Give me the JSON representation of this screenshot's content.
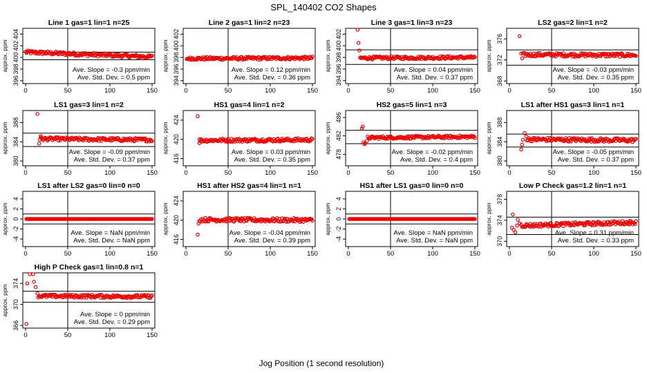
{
  "figure_title": "SPL_140402  CO2 Shapes",
  "x_axis_label": "Jog Position (1 second resolution)",
  "y_axis_label": "approx. ppm",
  "colors": {
    "points": "#ee0000",
    "axes": "#000000",
    "background": "#ffffff"
  },
  "chart_data": [
    {
      "type": "scatter",
      "title": "Line 1 gas=1 lin=1 n=25",
      "xlim": [
        0,
        150
      ],
      "xticks": [
        0,
        50,
        100,
        150
      ],
      "ylim": [
        395.5,
        405
      ],
      "yticks": [
        396,
        398,
        400,
        402,
        404
      ],
      "hlines": [
        400.9,
        399.6
      ],
      "annotations": [
        "Ave. Slope = -0.3 ppm/min",
        "Ave. Std. Dev. = 0.5 ppm"
      ],
      "series": [
        {
          "name": "co2",
          "gen": {
            "x0": 0,
            "x1": 150,
            "a": 400.9,
            "b": 400.1,
            "noise": 0.3,
            "step": 1
          }
        }
      ]
    },
    {
      "type": "scatter",
      "title": "Line 2 gas=1 lin=2 n=23",
      "xlim": [
        0,
        150
      ],
      "xticks": [
        0,
        50,
        100,
        150
      ],
      "ylim": [
        393.5,
        403
      ],
      "yticks": [
        394,
        396,
        398,
        400,
        402
      ],
      "hlines": [],
      "annotations": [
        "Ave. Slope = 0.12 ppm/min",
        "Ave. Std. Dev. = 0.36 ppm"
      ],
      "series": [
        {
          "name": "co2",
          "gen": {
            "x0": 1,
            "x1": 150,
            "a": 397.8,
            "b": 397.9,
            "noise": 0.25,
            "step": 1
          }
        }
      ]
    },
    {
      "type": "scatter",
      "title": "Line 3 gas=1 lin=3 n=23",
      "xlim": [
        0,
        150
      ],
      "xticks": [
        0,
        50,
        100,
        150
      ],
      "ylim": [
        393.5,
        403
      ],
      "yticks": [
        394,
        396,
        398,
        400,
        402
      ],
      "hlines": [
        399.3,
        396.8
      ],
      "annotations": [
        "Ave. Slope = 0.04 ppm/min",
        "Ave. Std. Dev. = 0.37 ppm"
      ],
      "series": [
        {
          "name": "co2",
          "extra": [
            [
              11,
              402.8
            ],
            [
              12,
              400.5
            ],
            [
              13,
              399.2
            ]
          ],
          "gen": {
            "x0": 14,
            "x1": 150,
            "a": 397.9,
            "b": 398.0,
            "noise": 0.25,
            "step": 1
          }
        }
      ]
    },
    {
      "type": "scatter",
      "title": "LS2 gas=2 lin=1 n=2",
      "xlim": [
        0,
        150
      ],
      "xticks": [
        0,
        50,
        100,
        150
      ],
      "ylim": [
        367.5,
        378
      ],
      "yticks": [
        368,
        372,
        376
      ],
      "hlines": [
        373.9,
        371.0
      ],
      "annotations": [
        "Ave. Slope = -0.03 ppm/min",
        "Ave. Std. Dev. = 0.35 ppm"
      ],
      "series": [
        {
          "name": "co2",
          "extra": [
            [
              12,
              376.5
            ],
            [
              14,
              373.2
            ],
            [
              15,
              372.3
            ]
          ],
          "gen": {
            "x0": 16,
            "x1": 150,
            "a": 373.0,
            "b": 372.9,
            "noise": 0.35,
            "step": 1
          }
        }
      ]
    },
    {
      "type": "scatter",
      "title": "LS1 gas=3 lin=1 n=2",
      "xlim": [
        0,
        150
      ],
      "xticks": [
        0,
        50,
        100,
        150
      ],
      "ylim": [
        379,
        390.5
      ],
      "yticks": [
        380,
        384,
        388
      ],
      "hlines": [
        385.8,
        383.0
      ],
      "annotations": [
        "Ave. Slope = -0.09 ppm/min",
        "Ave. Std. Dev. = 0.37 ppm"
      ],
      "series": [
        {
          "name": "co2",
          "extra": [
            [
              14,
              389.8
            ],
            [
              16,
              383.6
            ],
            [
              18,
              385.2
            ]
          ],
          "gen": {
            "x0": 17,
            "x1": 150,
            "a": 384.6,
            "b": 384.4,
            "noise": 0.35,
            "step": 1
          }
        }
      ]
    },
    {
      "type": "scatter",
      "title": "HS1 gas=4 lin=1 n=2",
      "xlim": [
        0,
        150
      ],
      "xticks": [
        0,
        50,
        100,
        150
      ],
      "ylim": [
        414.5,
        426
      ],
      "yticks": [
        416,
        420,
        424
      ],
      "hlines": [],
      "annotations": [
        "Ave. Slope = 0.03 ppm/min",
        "Ave. Std. Dev. = 0.35 ppm"
      ],
      "series": [
        {
          "name": "co2",
          "extra": [
            [
              14,
              424.8
            ],
            [
              16,
              419.2
            ]
          ],
          "gen": {
            "x0": 16,
            "x1": 150,
            "a": 419.8,
            "b": 419.9,
            "noise": 0.35,
            "step": 1
          }
        }
      ]
    },
    {
      "type": "scatter",
      "title": "HS2 gas=5 lin=1 n=3",
      "xlim": [
        0,
        150
      ],
      "xticks": [
        0,
        50,
        100,
        150
      ],
      "ylim": [
        475.5,
        487.5
      ],
      "yticks": [
        478,
        482,
        486
      ],
      "hlines": [
        483.2,
        480.3
      ],
      "annotations": [
        "Ave. Slope = -0.02 ppm/min",
        "Ave. Std. Dev. = 0.4 ppm"
      ],
      "series": [
        {
          "name": "co2",
          "extra": [
            [
              16,
              483.6
            ],
            [
              17,
              484.0
            ],
            [
              18,
              480.6
            ],
            [
              19,
              480.2
            ],
            [
              20,
              480.4
            ],
            [
              22,
              480.9
            ]
          ],
          "gen": {
            "x0": 23,
            "x1": 150,
            "a": 481.6,
            "b": 481.8,
            "noise": 0.3,
            "step": 1
          }
        }
      ]
    },
    {
      "type": "scatter",
      "title": "LS1 after HS1 gas=3 lin=1 n=1",
      "xlim": [
        0,
        150
      ],
      "xticks": [
        0,
        50,
        100,
        150
      ],
      "ylim": [
        379,
        390.5
      ],
      "yticks": [
        380,
        384,
        388
      ],
      "hlines": [
        385.6,
        382.9
      ],
      "annotations": [
        "Ave. Slope = -0.05 ppm/min",
        "Ave. Std. Dev. = 0.37 ppm"
      ],
      "series": [
        {
          "name": "co2",
          "extra": [
            [
              14,
              382.4
            ],
            [
              15,
              383.4
            ],
            [
              16,
              384.4
            ],
            [
              18,
              385.8
            ],
            [
              20,
              385.1
            ]
          ],
          "gen": {
            "x0": 21,
            "x1": 150,
            "a": 384.5,
            "b": 384.3,
            "noise": 0.4,
            "step": 1
          }
        }
      ]
    },
    {
      "type": "scatter",
      "title": "LS1 after LS2 gas=0 lin=0 n=0",
      "xlim": [
        0,
        150
      ],
      "xticks": [
        0,
        50,
        100,
        150
      ],
      "ylim": [
        -5.5,
        5.5
      ],
      "yticks": [
        -4,
        -2,
        0,
        2,
        4
      ],
      "hlines": [
        1.0,
        -1.0
      ],
      "annotations": [
        "Ave. Slope = NaN ppm/min",
        "Ave. Std. Dev. = NaN ppm"
      ],
      "series": [
        {
          "name": "co2",
          "gen": {
            "x0": 1,
            "x1": 150,
            "a": 0,
            "b": 0,
            "noise": 0,
            "step": 1
          }
        }
      ]
    },
    {
      "type": "scatter",
      "title": "HS1 after HS2 gas=4 lin=1 n=1",
      "xlim": [
        0,
        150
      ],
      "xticks": [
        0,
        50,
        100,
        150
      ],
      "ylim": [
        414.5,
        426
      ],
      "yticks": [
        416,
        420,
        424
      ],
      "hlines": [],
      "annotations": [
        "Ave. Slope = -0.04 ppm/min",
        "Ave. Std. Dev. = 0.39 ppm"
      ],
      "series": [
        {
          "name": "co2",
          "extra": [
            [
              14,
              417.0
            ],
            [
              15,
              419.3
            ]
          ],
          "gen": {
            "x0": 16,
            "x1": 150,
            "a": 420.1,
            "b": 420.0,
            "noise": 0.4,
            "step": 1
          }
        }
      ]
    },
    {
      "type": "scatter",
      "title": "HS1 after LS1 gas=0 lin=0 n=0",
      "xlim": [
        0,
        150
      ],
      "xticks": [
        0,
        50,
        100,
        150
      ],
      "ylim": [
        -5.5,
        5.5
      ],
      "yticks": [
        -4,
        -2,
        0,
        2,
        4
      ],
      "hlines": [
        1.0,
        -1.0
      ],
      "annotations": [
        "Ave. Slope = NaN ppm/min",
        "Ave. Std. Dev. = NaN ppm"
      ],
      "series": [
        {
          "name": "co2",
          "gen": {
            "x0": 1,
            "x1": 150,
            "a": 0,
            "b": 0,
            "noise": 0,
            "step": 1
          }
        }
      ]
    },
    {
      "type": "scatter",
      "title": "Low P Check gas=1.2 lin=1 n=1",
      "xlim": [
        0,
        150
      ],
      "xticks": [
        0,
        50,
        100,
        150
      ],
      "ylim": [
        369,
        379.5
      ],
      "yticks": [
        370,
        374,
        378
      ],
      "hlines": [
        374.6,
        371.3
      ],
      "annotations": [
        "Ave. Slope = 0.31 ppm/min",
        "Ave. Std. Dev. = 0.33 ppm"
      ],
      "series": [
        {
          "name": "co2",
          "extra": [
            [
              3,
              372.6
            ],
            [
              4,
              375.1
            ],
            [
              5,
              372.2
            ],
            [
              7,
              371.7
            ],
            [
              9,
              373.0
            ],
            [
              10,
              374.1
            ],
            [
              12,
              373.4
            ]
          ],
          "gen": {
            "x0": 14,
            "x1": 150,
            "a": 373.0,
            "b": 373.6,
            "noise": 0.35,
            "step": 1
          }
        }
      ]
    },
    {
      "type": "scatter",
      "title": "High P Check gas=1 lin=0.8 n=1",
      "xlim": [
        0,
        150
      ],
      "xticks": [
        0,
        50,
        100,
        150
      ],
      "ylim": [
        365.5,
        376
      ],
      "yticks": [
        366,
        370,
        374
      ],
      "hlines": [
        372.5,
        370.4
      ],
      "annotations": [
        "Ave. Slope = 0 ppm/min",
        "Ave. Std. Dev. = 0.29 ppm"
      ],
      "series": [
        {
          "name": "co2",
          "extra": [
            [
              1,
              366.3
            ],
            [
              2,
              374.0
            ],
            [
              5,
              375.8
            ],
            [
              9,
              375.8
            ],
            [
              10,
              374.3
            ],
            [
              12,
              373.3
            ],
            [
              14,
              372.1
            ]
          ],
          "gen": {
            "x0": 15,
            "x1": 150,
            "a": 371.6,
            "b": 371.5,
            "noise": 0.3,
            "step": 1
          }
        }
      ]
    }
  ]
}
